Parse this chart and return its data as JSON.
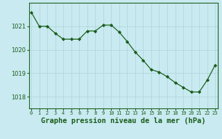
{
  "x": [
    0,
    1,
    2,
    3,
    4,
    5,
    6,
    7,
    8,
    9,
    10,
    11,
    12,
    13,
    14,
    15,
    16,
    17,
    18,
    19,
    20,
    21,
    22,
    23
  ],
  "y": [
    1021.6,
    1021.0,
    1021.0,
    1020.7,
    1020.45,
    1020.45,
    1020.45,
    1020.8,
    1020.8,
    1021.05,
    1021.05,
    1020.75,
    1020.35,
    1019.9,
    1019.55,
    1019.15,
    1019.05,
    1018.85,
    1018.6,
    1018.4,
    1018.2,
    1018.2,
    1018.7,
    1019.35
  ],
  "line_color": "#1a5c1a",
  "marker": "D",
  "marker_size": 2.2,
  "background_color": "#c8eaf0",
  "grid_color": "#b0d8de",
  "xlabel": "Graphe pression niveau de la mer (hPa)",
  "xlabel_fontsize": 7.5,
  "ylabel_ticks": [
    1018,
    1019,
    1020,
    1021
  ],
  "xtick_labels": [
    "0",
    "1",
    "2",
    "3",
    "4",
    "5",
    "6",
    "7",
    "8",
    "9",
    "10",
    "11",
    "12",
    "13",
    "14",
    "15",
    "16",
    "17",
    "18",
    "19",
    "20",
    "21",
    "22",
    "23"
  ],
  "ylim": [
    1017.5,
    1022.0
  ],
  "xlim": [
    -0.3,
    23.3
  ],
  "tick_color": "#1a5c1a",
  "label_color": "#1a5c1a",
  "xlabel_bold": true,
  "spine_color": "#1a5c1a",
  "ytick_fontsize": 6.0,
  "xtick_fontsize": 5.0
}
